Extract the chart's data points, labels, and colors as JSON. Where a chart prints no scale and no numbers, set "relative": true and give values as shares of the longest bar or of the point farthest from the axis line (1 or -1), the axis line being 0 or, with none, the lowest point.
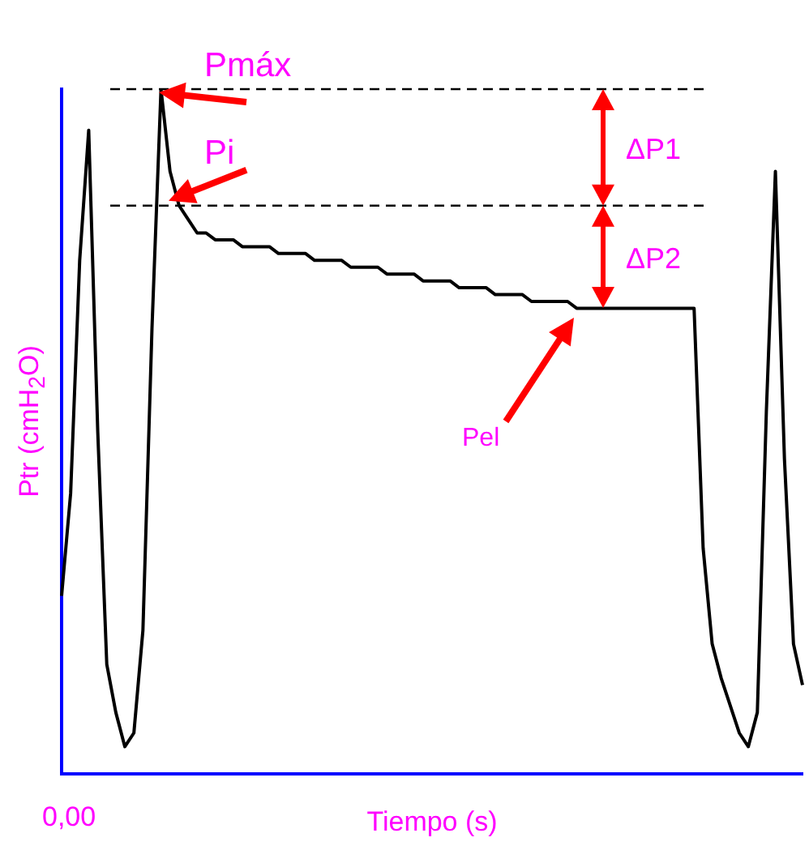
{
  "chart_data": {
    "type": "line",
    "relative": true,
    "xlabel": "Tiempo (s)",
    "ylabel": "Ptr (cmH$_{2}$O)",
    "categories": [
      null,
      null,
      null,
      null,
      null,
      null,
      null,
      null,
      null,
      null,
      null,
      null,
      null,
      null,
      null,
      null,
      null,
      null,
      null,
      null,
      null,
      null,
      null,
      null,
      null,
      null,
      null,
      null,
      null,
      null,
      null,
      null,
      null,
      null,
      null,
      null,
      null,
      null,
      null,
      null,
      null,
      null,
      null,
      null,
      null,
      null,
      null,
      null,
      null,
      null,
      null,
      null,
      null,
      null,
      null,
      null,
      null,
      null,
      null,
      null,
      null,
      null,
      null,
      null,
      null,
      null,
      null,
      null,
      null,
      null,
      null,
      null,
      null,
      null,
      null,
      null,
      null,
      null,
      null,
      null,
      null,
      null,
      null
    ],
    "series": [
      {
        "color": "#000000",
        "values": [
          0.26,
          0.41,
          0.75,
          0.94,
          0.5,
          0.16,
          0.09,
          0.04,
          0.06,
          0.21,
          0.65,
          1,
          0.88,
          0.83,
          0.81,
          0.79,
          0.79,
          0.78,
          0.78,
          0.78,
          0.77,
          0.77,
          0.77,
          0.77,
          0.76,
          0.76,
          0.76,
          0.76,
          0.75,
          0.75,
          0.75,
          0.75,
          0.74,
          0.74,
          0.74,
          0.74,
          0.73,
          0.73,
          0.73,
          0.73,
          0.72,
          0.72,
          0.72,
          0.72,
          0.71,
          0.71,
          0.71,
          0.71,
          0.7,
          0.7,
          0.7,
          0.7,
          0.69,
          0.69,
          0.69,
          0.69,
          0.69,
          0.68,
          0.68,
          0.68,
          0.68,
          0.68,
          0.68,
          0.68,
          0.68,
          0.68,
          0.68,
          0.68,
          0.68,
          0.68,
          0.68,
          0.33,
          0.19,
          0.14,
          0.1,
          0.06,
          0.04,
          0.09,
          0.53,
          0.88,
          0.46,
          0.19,
          0.13
        ]
      }
    ],
    "ref_lines": [
      {
        "axis": "y",
        "value": 1,
        "color": "#000000",
        "line_style": "dashed"
      },
      {
        "axis": "y",
        "value": 0.83,
        "color": "#000000",
        "line_style": "dashed"
      }
    ],
    "annotations": [
      {
        "text": "Pmáx",
        "y": 1
      },
      {
        "text": "Pi",
        "y": 0.83
      },
      "ΔP1",
      "ΔP2",
      "Pel",
      "0,00"
    ]
  }
}
